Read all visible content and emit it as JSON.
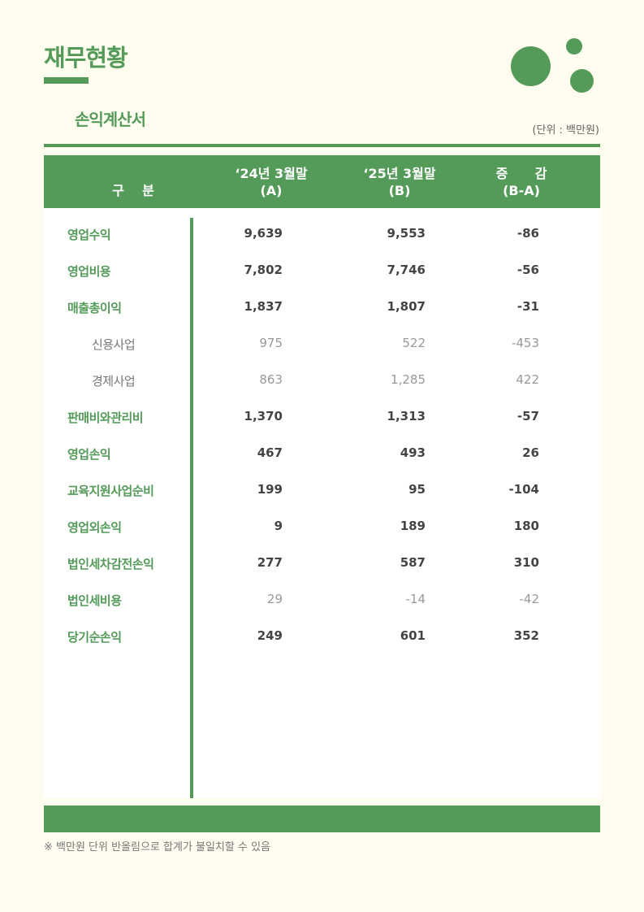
{
  "page": {
    "title": "재무현황",
    "subtitle": "손익계산서",
    "unit": "(단위 : 백만원)",
    "accent_color": "#549b5a"
  },
  "table": {
    "headers": {
      "category": "구    분",
      "col_a_line1": "‘24년 3월말",
      "col_a_line2": "(A)",
      "col_b_line1": "‘25년 3월말",
      "col_b_line2": "(B)",
      "col_c_line1": "증      감",
      "col_c_line2": "(B-A)"
    },
    "rows": [
      {
        "label": "영업수익",
        "a": "9,639",
        "b": "9,553",
        "diff": "-86",
        "style": "main"
      },
      {
        "label": "영업비용",
        "a": "7,802",
        "b": "7,746",
        "diff": "-56",
        "style": "main"
      },
      {
        "label": "매출총이익",
        "a": "1,837",
        "b": "1,807",
        "diff": "-31",
        "style": "main"
      },
      {
        "label": "신용사업",
        "a": "975",
        "b": "522",
        "diff": "-453",
        "style": "sub"
      },
      {
        "label": "경제사업",
        "a": "863",
        "b": "1,285",
        "diff": "422",
        "style": "sub"
      },
      {
        "label": "판매비와관리비",
        "a": "1,370",
        "b": "1,313",
        "diff": "-57",
        "style": "main"
      },
      {
        "label": "영업손익",
        "a": "467",
        "b": "493",
        "diff": "26",
        "style": "main"
      },
      {
        "label": "교육지원사업순비",
        "a": "199",
        "b": "95",
        "diff": "-104",
        "style": "main"
      },
      {
        "label": "영업외손익",
        "a": "9",
        "b": "189",
        "diff": "180",
        "style": "main"
      },
      {
        "label": "법인세차감전손익",
        "a": "277",
        "b": "587",
        "diff": "310",
        "style": "main"
      },
      {
        "label": "법인세비용",
        "a": "29",
        "b": "-14",
        "diff": "-42",
        "style": "light"
      },
      {
        "label": "당기순손익",
        "a": "249",
        "b": "601",
        "diff": "352",
        "style": "main"
      }
    ]
  },
  "footnote": "※ 백만원 단위 반올림으로 합계가 불일치할 수 있음"
}
